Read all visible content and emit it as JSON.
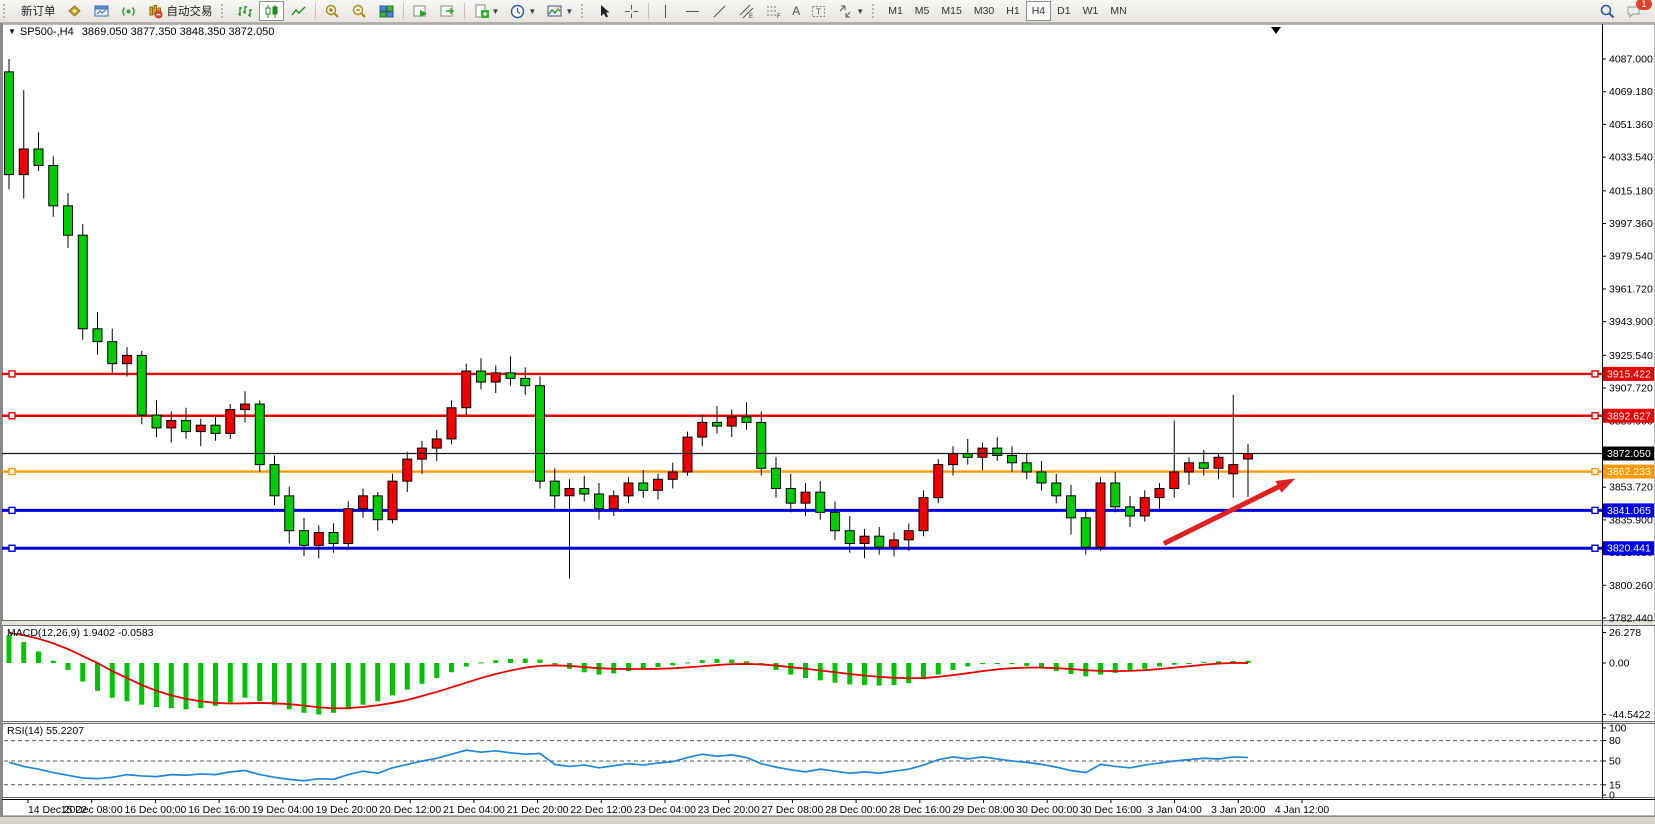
{
  "toolbar": {
    "new_order_label": "新订单",
    "autotrade_label": "自动交易",
    "text_tool_label": "A",
    "label_tool_label": "T",
    "timeframes": [
      "M1",
      "M5",
      "M15",
      "M30",
      "H1",
      "H4",
      "D1",
      "W1",
      "MN"
    ],
    "active_timeframe": "H4",
    "notification_count": "1"
  },
  "chart": {
    "symbol_period": "SP500-,H4",
    "ohlc_line": "3869.050 3877.350 3848.350 3872.050",
    "macd_label": "MACD(12,26,9) 1.9402 -0.0583",
    "rsi_label": "RSI(14) 55.2207"
  },
  "chart_data": {
    "type": "candlestick",
    "symbol": "SP500-",
    "period": "H4",
    "current_open": 3869.05,
    "current_high": 3877.35,
    "current_low": 3848.35,
    "current_close": 3872.05,
    "current_price_label": "3872.050",
    "bull_color": "#f20000",
    "bear_color": "#00cd00",
    "wick_color": "#000000",
    "price_axis_range": [
      3780.6,
      4104.4
    ],
    "grid": "off",
    "price_ticks": [
      [
        "4087.000",
        4087.0
      ],
      [
        "4069.180",
        4069.18
      ],
      [
        "4051.360",
        4051.36
      ],
      [
        "4033.540",
        4033.54
      ],
      [
        "4015.180",
        4015.18
      ],
      [
        "3997.360",
        3997.36
      ],
      [
        "3979.540",
        3979.54
      ],
      [
        "3961.720",
        3961.72
      ],
      [
        "3943.900",
        3943.9
      ],
      [
        "3925.540",
        3925.54
      ],
      [
        "3907.720",
        3907.72
      ],
      [
        "3889.900",
        3889.9
      ],
      [
        "3853.720",
        3853.72
      ],
      [
        "3835.900",
        3835.9
      ],
      [
        "3818.080",
        3818.08
      ],
      [
        "3800.260",
        3800.26
      ],
      [
        "3782.440",
        3782.44
      ]
    ],
    "hlines": [
      {
        "label": "3915.422",
        "price": 3915.422,
        "color": "#e60000",
        "width": 2.4
      },
      {
        "label": "3892.627",
        "price": 3892.627,
        "color": "#e60000",
        "width": 2.4
      },
      {
        "label": "3862.233",
        "price": 3862.233,
        "color": "#ff9900",
        "width": 2.4
      },
      {
        "label": "3841.065",
        "price": 3841.065,
        "color": "#0000e6",
        "width": 3
      },
      {
        "label": "3820.441",
        "price": 3820.441,
        "color": "#0000e6",
        "width": 3
      }
    ],
    "time_labels": [
      "14 Dec 2022",
      "15 Dec 08:00",
      "16 Dec 00:00",
      "16 Dec 16:00",
      "19 Dec 04:00",
      "19 Dec 20:00",
      "20 Dec 12:00",
      "21 Dec 04:00",
      "21 Dec 20:00",
      "22 Dec 12:00",
      "23 Dec 04:00",
      "23 Dec 20:00",
      "27 Dec 08:00",
      "28 Dec 00:00",
      "28 Dec 16:00",
      "29 Dec 08:00",
      "30 Dec 00:00",
      "30 Dec 16:00",
      "3 Jan 04:00",
      "3 Jan 20:00",
      "4 Jan 12:00"
    ],
    "candles": [
      [
        4080,
        4087,
        4016,
        4024
      ],
      [
        4024,
        4070,
        4011,
        4038
      ],
      [
        4038,
        4047,
        4026,
        4029
      ],
      [
        4029,
        4034,
        4001,
        4007
      ],
      [
        4007,
        4014,
        3984,
        3991
      ],
      [
        3991,
        3997,
        3934,
        3940
      ],
      [
        3940,
        3949,
        3926,
        3933
      ],
      [
        3933,
        3940,
        3916,
        3921
      ],
      [
        3921,
        3930,
        3914,
        3925.5
      ],
      [
        3925.5,
        3928,
        3888,
        3893
      ],
      [
        3893,
        3901,
        3881,
        3886
      ],
      [
        3886,
        3895,
        3878,
        3890
      ],
      [
        3890,
        3897,
        3880,
        3884
      ],
      [
        3884,
        3891,
        3876,
        3887.5
      ],
      [
        3887.5,
        3893,
        3879,
        3883
      ],
      [
        3883,
        3899,
        3880,
        3896
      ],
      [
        3896,
        3906,
        3889,
        3899
      ],
      [
        3899,
        3901,
        3862,
        3866
      ],
      [
        3866,
        3871,
        3844,
        3849
      ],
      [
        3849,
        3854,
        3823,
        3830
      ],
      [
        3830,
        3837,
        3816,
        3822
      ],
      [
        3822,
        3833,
        3815,
        3829
      ],
      [
        3829,
        3834,
        3818,
        3823
      ],
      [
        3823,
        3846,
        3820,
        3842
      ],
      [
        3842,
        3853,
        3837,
        3849
      ],
      [
        3849,
        3851,
        3830,
        3836
      ],
      [
        3836,
        3861,
        3834,
        3857
      ],
      [
        3857,
        3873,
        3851,
        3869
      ],
      [
        3869,
        3879,
        3861,
        3875
      ],
      [
        3875,
        3885,
        3868,
        3880
      ],
      [
        3880,
        3901,
        3877,
        3897
      ],
      [
        3897,
        3921,
        3893,
        3917
      ],
      [
        3917,
        3924,
        3907,
        3911
      ],
      [
        3911,
        3920,
        3905,
        3916
      ],
      [
        3916,
        3925,
        3909,
        3913
      ],
      [
        3913,
        3919,
        3904,
        3909
      ],
      [
        3909,
        3914,
        3853,
        3857
      ],
      [
        3857,
        3864,
        3842,
        3849
      ],
      [
        3849,
        3858,
        3804,
        3853
      ],
      [
        3853,
        3860,
        3846,
        3850
      ],
      [
        3850,
        3856,
        3836,
        3842
      ],
      [
        3842,
        3852,
        3838,
        3849
      ],
      [
        3849,
        3859,
        3845,
        3856
      ],
      [
        3856,
        3863,
        3848,
        3852
      ],
      [
        3852,
        3861,
        3847,
        3858
      ],
      [
        3858,
        3867,
        3853,
        3862
      ],
      [
        3862,
        3884,
        3860,
        3881
      ],
      [
        3881,
        3893,
        3876,
        3889
      ],
      [
        3889,
        3898,
        3883,
        3887
      ],
      [
        3887,
        3896,
        3881,
        3892
      ],
      [
        3892,
        3900,
        3885,
        3889
      ],
      [
        3889,
        3895,
        3860,
        3864
      ],
      [
        3864,
        3870,
        3848,
        3853
      ],
      [
        3853,
        3861,
        3840,
        3845
      ],
      [
        3845,
        3856,
        3838,
        3851
      ],
      [
        3851,
        3857,
        3836,
        3840
      ],
      [
        3840,
        3846,
        3825,
        3830
      ],
      [
        3830,
        3838,
        3818,
        3823
      ],
      [
        3823,
        3831,
        3815,
        3827
      ],
      [
        3827,
        3832,
        3817,
        3821
      ],
      [
        3821,
        3829,
        3816,
        3825
      ],
      [
        3825,
        3834,
        3819,
        3830
      ],
      [
        3830,
        3852,
        3827,
        3848
      ],
      [
        3848,
        3869,
        3845,
        3866
      ],
      [
        3866,
        3876,
        3860,
        3872
      ],
      [
        3872,
        3880,
        3866,
        3870
      ],
      [
        3870,
        3878,
        3863,
        3875
      ],
      [
        3875,
        3881,
        3868,
        3871
      ],
      [
        3871,
        3876,
        3862,
        3867
      ],
      [
        3867,
        3872,
        3858,
        3862
      ],
      [
        3862,
        3868,
        3852,
        3856
      ],
      [
        3856,
        3861,
        3845,
        3849
      ],
      [
        3849,
        3855,
        3828,
        3837
      ],
      [
        3837,
        3841,
        3817,
        3821
      ],
      [
        3821,
        3859,
        3819,
        3856
      ],
      [
        3856,
        3862,
        3840,
        3843
      ],
      [
        3843,
        3849,
        3832,
        3838
      ],
      [
        3838,
        3852,
        3835,
        3848
      ],
      [
        3848,
        3856,
        3842,
        3853
      ],
      [
        3853,
        3890,
        3848,
        3862
      ],
      [
        3862,
        3870,
        3855,
        3867
      ],
      [
        3867,
        3874,
        3860,
        3864
      ],
      [
        3864,
        3872,
        3858,
        3870
      ],
      [
        3861,
        3904,
        3848,
        3866
      ],
      [
        3869.05,
        3877.35,
        3848.35,
        3872.05
      ]
    ],
    "macd": {
      "name": "MACD(12,26,9)",
      "value_main": 1.9402,
      "value_signal": -0.0583,
      "ticks": [
        [
          "26.278",
          26.278
        ],
        [
          "0.00",
          0
        ],
        [
          "-44.5422",
          -44.5422
        ]
      ],
      "hist_color": "#00c400",
      "signal_color": "#e60000",
      "hist": [
        24,
        18,
        10,
        2,
        -6,
        -16,
        -24,
        -30,
        -33,
        -36,
        -38,
        -39,
        -40,
        -39,
        -37,
        -34,
        -30,
        -33,
        -36,
        -40,
        -43,
        -44.5,
        -43,
        -40,
        -36,
        -33,
        -28,
        -23,
        -18,
        -13,
        -8,
        -3,
        0.5,
        2.5,
        3.5,
        3.8,
        3,
        -1,
        -5,
        -8,
        -10,
        -9,
        -7,
        -5,
        -3.5,
        -2,
        0.5,
        2.5,
        3.5,
        3,
        1.5,
        -2,
        -6,
        -10,
        -13,
        -15,
        -17,
        -18.5,
        -19,
        -19.5,
        -19,
        -17.5,
        -14,
        -10,
        -6,
        -3,
        -1,
        0,
        -1,
        -2.5,
        -4.5,
        -7,
        -9.5,
        -11.5,
        -10,
        -8.5,
        -7,
        -5,
        -3,
        -1.5,
        0,
        1,
        1.5,
        1.8,
        1.94
      ],
      "signal": [
        26,
        24,
        21,
        17,
        12,
        6,
        0,
        -7,
        -13,
        -19,
        -24,
        -28,
        -31,
        -33,
        -34.5,
        -35,
        -34.8,
        -34.5,
        -34.8,
        -35.5,
        -36.8,
        -38.2,
        -39.2,
        -39,
        -38,
        -36.5,
        -34.5,
        -32,
        -28.5,
        -25,
        -21,
        -17,
        -13,
        -9.5,
        -6.5,
        -4,
        -2.5,
        -2,
        -2.5,
        -3.5,
        -4.5,
        -5,
        -5.2,
        -5.2,
        -5,
        -4.6,
        -3.8,
        -2.8,
        -1.8,
        -1,
        -0.8,
        -1.2,
        -2.2,
        -3.6,
        -5,
        -6.5,
        -8,
        -9.5,
        -10.8,
        -12,
        -12.8,
        -13.2,
        -13,
        -12,
        -10.5,
        -8.8,
        -7,
        -5.5,
        -4.5,
        -4,
        -4,
        -4.5,
        -5.2,
        -6.2,
        -6.8,
        -7,
        -6.8,
        -6.2,
        -5.2,
        -4,
        -2.8,
        -1.5,
        -0.5,
        0.1,
        -0.06
      ]
    },
    "rsi": {
      "name": "RSI(14)",
      "value": 55.2207,
      "line_color": "#1f86d8",
      "scale_labels": [
        [
          "100",
          100
        ],
        [
          "80",
          80
        ],
        [
          "50",
          50
        ],
        [
          "15",
          15
        ],
        [
          "0",
          0
        ]
      ],
      "dashed_levels": [
        80,
        50,
        15
      ],
      "series": [
        48,
        42,
        38,
        33,
        29,
        25,
        24,
        26,
        30,
        28,
        27,
        30,
        29,
        31,
        30,
        34,
        36,
        30,
        26,
        23,
        21,
        24,
        23,
        30,
        35,
        32,
        40,
        45,
        50,
        54,
        60,
        66,
        63,
        65,
        62,
        60,
        61,
        45,
        42,
        44,
        40,
        43,
        46,
        44,
        47,
        49,
        55,
        60,
        57,
        59,
        55,
        46,
        41,
        37,
        34,
        38,
        35,
        32,
        34,
        32,
        35,
        38,
        44,
        52,
        56,
        53,
        56,
        53,
        50,
        48,
        45,
        41,
        36,
        33,
        45,
        42,
        40,
        44,
        47,
        50,
        52,
        54,
        53,
        56,
        55.22
      ]
    },
    "arrow": {
      "from_bar": 78.3,
      "from_price": 3823,
      "to_bar": 86.6,
      "to_price": 3856,
      "color": "#e02020"
    }
  }
}
